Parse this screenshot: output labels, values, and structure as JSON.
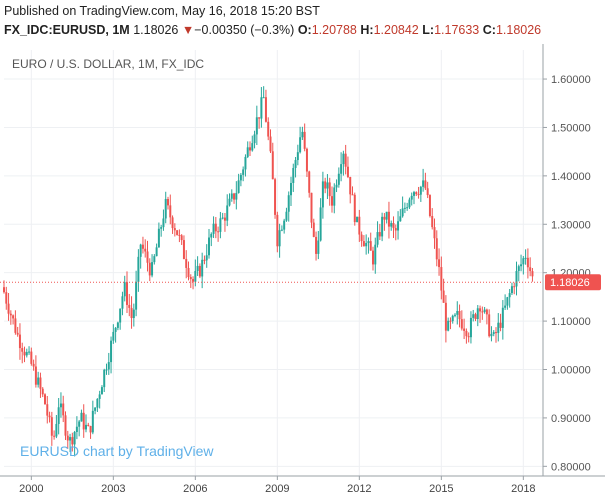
{
  "header": {
    "published": "Published on TradingView.com, May 16, 2018 15:20 BST",
    "symbol": "FX_IDC:EURUSD, 1M",
    "last": "1.18026",
    "change_arrow": "▼",
    "change": "−0.00350 (−0.3%)",
    "o_label": "O:",
    "o_value": "1.20788",
    "h_label": "H:",
    "h_value": "1.20842",
    "l_label": "L:",
    "l_value": "1.17633",
    "c_label": "C:",
    "c_value": "1.18026"
  },
  "colors": {
    "up": "#26a69a",
    "down": "#ef5350",
    "price_line": "#ef5350",
    "watermark": "#5fb0e8",
    "neg_text": "#c0392b"
  },
  "chart_data": {
    "type": "candlestick",
    "title": "EURO / U.S. DOLLAR, 1M, FX_IDC",
    "watermark": "EURUSD chart by TradingView",
    "last_price_label": "1.18026",
    "last_price": 1.18026,
    "ylim": [
      0.78,
      1.66
    ],
    "xlim": [
      1999.0,
      2018.5
    ],
    "y_ticks": [
      "1.60000",
      "1.50000",
      "1.40000",
      "1.30000",
      "1.20000",
      "1.10000",
      "1.00000",
      "0.90000",
      "0.80000"
    ],
    "y_tick_values": [
      1.6,
      1.5,
      1.4,
      1.3,
      1.2,
      1.1,
      1.0,
      0.9,
      0.8
    ],
    "x_ticks": [
      "2000",
      "2003",
      "2006",
      "2009",
      "2012",
      "2015",
      "2018"
    ],
    "x_tick_values": [
      2000,
      2003,
      2006,
      2009,
      2012,
      2015,
      2018
    ],
    "series_close": [
      {
        "t": 1999.0,
        "v": 1.16
      },
      {
        "t": 1999.5,
        "v": 1.07
      },
      {
        "t": 2000.0,
        "v": 1.01
      },
      {
        "t": 2000.5,
        "v": 0.93
      },
      {
        "t": 2000.8,
        "v": 0.85
      },
      {
        "t": 2001.0,
        "v": 0.93
      },
      {
        "t": 2001.4,
        "v": 0.85
      },
      {
        "t": 2001.8,
        "v": 0.9
      },
      {
        "t": 2002.1,
        "v": 0.87
      },
      {
        "t": 2002.6,
        "v": 0.98
      },
      {
        "t": 2003.0,
        "v": 1.07
      },
      {
        "t": 2003.4,
        "v": 1.17
      },
      {
        "t": 2003.7,
        "v": 1.1
      },
      {
        "t": 2004.0,
        "v": 1.26
      },
      {
        "t": 2004.4,
        "v": 1.2
      },
      {
        "t": 2004.9,
        "v": 1.34
      },
      {
        "t": 2005.3,
        "v": 1.29
      },
      {
        "t": 2005.9,
        "v": 1.18
      },
      {
        "t": 2006.2,
        "v": 1.21
      },
      {
        "t": 2006.6,
        "v": 1.28
      },
      {
        "t": 2007.0,
        "v": 1.31
      },
      {
        "t": 2007.5,
        "v": 1.37
      },
      {
        "t": 2008.0,
        "v": 1.47
      },
      {
        "t": 2008.5,
        "v": 1.56
      },
      {
        "t": 2008.8,
        "v": 1.41
      },
      {
        "t": 2009.0,
        "v": 1.27
      },
      {
        "t": 2009.3,
        "v": 1.33
      },
      {
        "t": 2009.9,
        "v": 1.5
      },
      {
        "t": 2010.4,
        "v": 1.23
      },
      {
        "t": 2010.7,
        "v": 1.39
      },
      {
        "t": 2011.0,
        "v": 1.35
      },
      {
        "t": 2011.4,
        "v": 1.46
      },
      {
        "t": 2011.9,
        "v": 1.3
      },
      {
        "t": 2012.5,
        "v": 1.23
      },
      {
        "t": 2012.9,
        "v": 1.32
      },
      {
        "t": 2013.3,
        "v": 1.28
      },
      {
        "t": 2013.9,
        "v": 1.37
      },
      {
        "t": 2014.4,
        "v": 1.38
      },
      {
        "t": 2014.9,
        "v": 1.21
      },
      {
        "t": 2015.2,
        "v": 1.08
      },
      {
        "t": 2015.6,
        "v": 1.11
      },
      {
        "t": 2016.0,
        "v": 1.08
      },
      {
        "t": 2016.4,
        "v": 1.14
      },
      {
        "t": 2016.9,
        "v": 1.06
      },
      {
        "t": 2017.3,
        "v": 1.12
      },
      {
        "t": 2017.7,
        "v": 1.19
      },
      {
        "t": 2018.1,
        "v": 1.24
      },
      {
        "t": 2018.37,
        "v": 1.18
      }
    ]
  }
}
